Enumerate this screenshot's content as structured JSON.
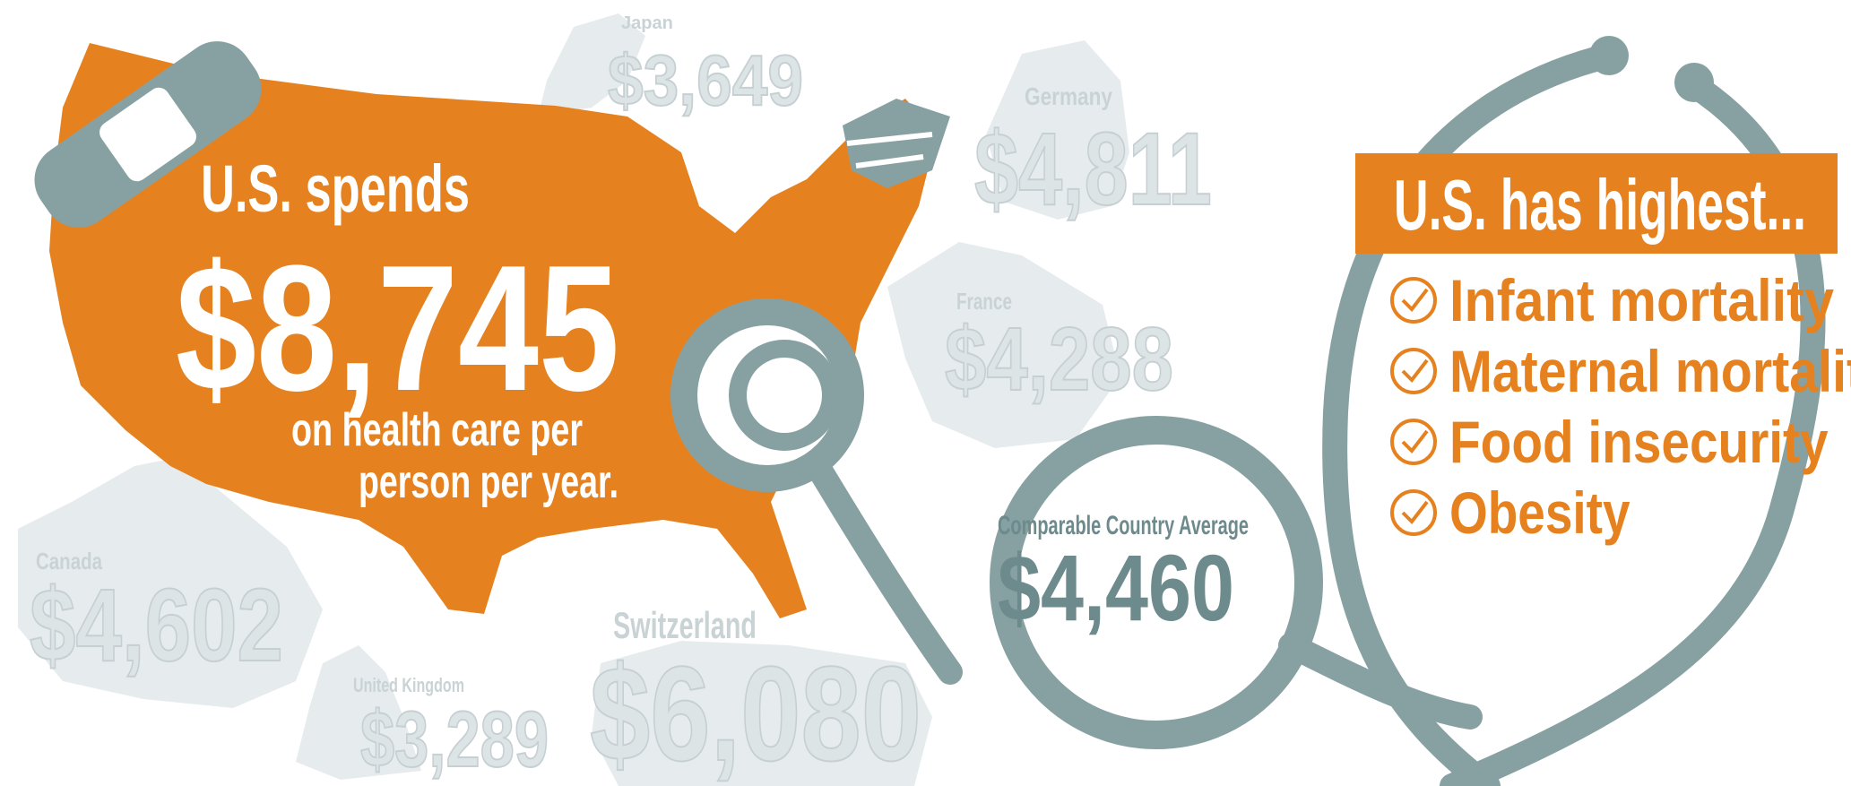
{
  "us": {
    "headline": "U.S. spends",
    "amount": "$8,745",
    "caption": [
      "on health care per",
      "person per year."
    ]
  },
  "countries": [
    {
      "name": "Japan",
      "amount": "$3,649"
    },
    {
      "name": "Germany",
      "amount": "$4,811"
    },
    {
      "name": "France",
      "amount": "$4,288"
    },
    {
      "name": "Canada",
      "amount": "$4,602"
    },
    {
      "name": "United Kingdom",
      "amount": "$3,289"
    },
    {
      "name": "Switzerland",
      "amount": "$6,080"
    }
  ],
  "average": {
    "label": "Comparable Country Average",
    "amount": "$4,460"
  },
  "highest": {
    "title": "U.S. has highest...",
    "items": [
      "Infant mortality",
      "Maternal mortality",
      "Food insecurity",
      "Obesity"
    ]
  }
}
